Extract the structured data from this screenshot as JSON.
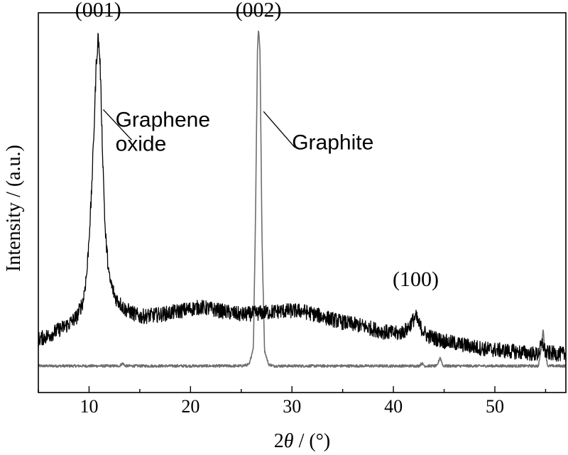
{
  "chart_data": {
    "type": "line",
    "xlabel_prefix": "2",
    "xlabel_symbol": "θ",
    "xlabel_suffix": " / (°)",
    "ylabel": "Intensity / (a.u.)",
    "xlim": [
      5,
      57
    ],
    "ylim": [
      0,
      100
    ],
    "x_ticks": [
      10,
      20,
      30,
      40,
      50
    ],
    "y_ticks_shown": false,
    "grid": false,
    "legend": "none",
    "series": [
      {
        "name": "Graphene oxide",
        "color": "#000000",
        "noise": 2.0,
        "points": [
          [
            5,
            14
          ],
          [
            6,
            15
          ],
          [
            7,
            16.5
          ],
          [
            8,
            18
          ],
          [
            8.8,
            20
          ],
          [
            9.4,
            24
          ],
          [
            9.8,
            32
          ],
          [
            10.2,
            50
          ],
          [
            10.5,
            70
          ],
          [
            10.7,
            86
          ],
          [
            10.9,
            94
          ],
          [
            11.1,
            86
          ],
          [
            11.3,
            66
          ],
          [
            11.6,
            42
          ],
          [
            12,
            30
          ],
          [
            12.6,
            25
          ],
          [
            13.5,
            22
          ],
          [
            15,
            20
          ],
          [
            17,
            20.5
          ],
          [
            19,
            21.5
          ],
          [
            21,
            22.5
          ],
          [
            23,
            21.5
          ],
          [
            25,
            20.5
          ],
          [
            27,
            21
          ],
          [
            29,
            21.5
          ],
          [
            31,
            21.5
          ],
          [
            33,
            20
          ],
          [
            35,
            18.5
          ],
          [
            37,
            17.5
          ],
          [
            39,
            16
          ],
          [
            40.5,
            15.5
          ],
          [
            41.3,
            16.5
          ],
          [
            41.8,
            18.5
          ],
          [
            42.2,
            20
          ],
          [
            42.6,
            17.5
          ],
          [
            43.3,
            15
          ],
          [
            45,
            13.5
          ],
          [
            47,
            12.5
          ],
          [
            49,
            11.5
          ],
          [
            51,
            11
          ],
          [
            53,
            10.5
          ],
          [
            54.2,
            10
          ],
          [
            54.7,
            13
          ],
          [
            55,
            10.5
          ],
          [
            57,
            10
          ]
        ]
      },
      {
        "name": "Graphite",
        "color": "#6e6e6e",
        "noise": 0.35,
        "points": [
          [
            5,
            7
          ],
          [
            13,
            7
          ],
          [
            13.3,
            7.7
          ],
          [
            13.6,
            7
          ],
          [
            25,
            7
          ],
          [
            25.8,
            7.4
          ],
          [
            26.2,
            12
          ],
          [
            26.4,
            45
          ],
          [
            26.6,
            90
          ],
          [
            26.7,
            96
          ],
          [
            26.85,
            90
          ],
          [
            27.05,
            40
          ],
          [
            27.3,
            11
          ],
          [
            27.7,
            7.4
          ],
          [
            28.2,
            7
          ],
          [
            42.5,
            7
          ],
          [
            42.8,
            7.7
          ],
          [
            43.1,
            7
          ],
          [
            44.3,
            7
          ],
          [
            44.6,
            9.3
          ],
          [
            44.9,
            7
          ],
          [
            54.3,
            7
          ],
          [
            54.6,
            12
          ],
          [
            54.75,
            17
          ],
          [
            54.9,
            12
          ],
          [
            55.2,
            7
          ],
          [
            57,
            7
          ]
        ]
      }
    ],
    "annotations": [
      {
        "text": "(001)",
        "x": 10.9,
        "y": 99
      },
      {
        "text": "(002)",
        "x": 26.7,
        "y": 99
      },
      {
        "text": "(100)",
        "x": 42.2,
        "y": 28
      }
    ],
    "series_labels": [
      {
        "lines": [
          "Graphene",
          "oxide"
        ],
        "x": 12.6,
        "y": 70,
        "leader_from": [
          11.4,
          74.5
        ],
        "leader_to": [
          14.2,
          66.5
        ]
      },
      {
        "lines": [
          "Graphite"
        ],
        "x": 30,
        "y": 64,
        "leader_from": [
          27.2,
          74
        ],
        "leader_to": [
          30.3,
          64.5
        ]
      }
    ]
  }
}
